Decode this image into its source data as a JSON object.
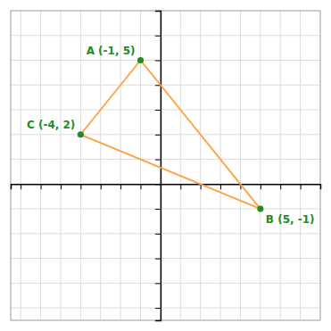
{
  "chart_data": {
    "type": "line",
    "series": [
      {
        "type": "line",
        "color": "#FFA040",
        "line_style": "solid",
        "x": [
          -1,
          5,
          -4,
          -1
        ],
        "values": [
          5,
          -1,
          2,
          5
        ]
      },
      {
        "type": "scatter",
        "color": "#228B22",
        "marker": "circle",
        "x": [
          -1,
          5,
          -4
        ],
        "values": [
          5,
          -1,
          2
        ]
      }
    ],
    "annotations": [
      {
        "text": "A (-1, 5)",
        "x": -1,
        "y": 5,
        "color": "#228B22"
      },
      {
        "text": "B (5, -1)",
        "x": 5,
        "y": -1,
        "color": "#228B22"
      },
      {
        "text": "C (-4, 2)",
        "x": -4,
        "y": 2,
        "color": "#228B22"
      }
    ],
    "xlim": [
      -7.5,
      8.0
    ],
    "ylim": [
      -5.5,
      7.0
    ],
    "xticks": [
      -7,
      -6,
      -5,
      -4,
      -3,
      -2,
      -1,
      0,
      1,
      2,
      3,
      4,
      5,
      6,
      7
    ],
    "yticks": [
      -5,
      -4,
      -3,
      -2,
      -1,
      0,
      1,
      2,
      3,
      4,
      5,
      6
    ],
    "grid": true,
    "tick_labels": false
  }
}
